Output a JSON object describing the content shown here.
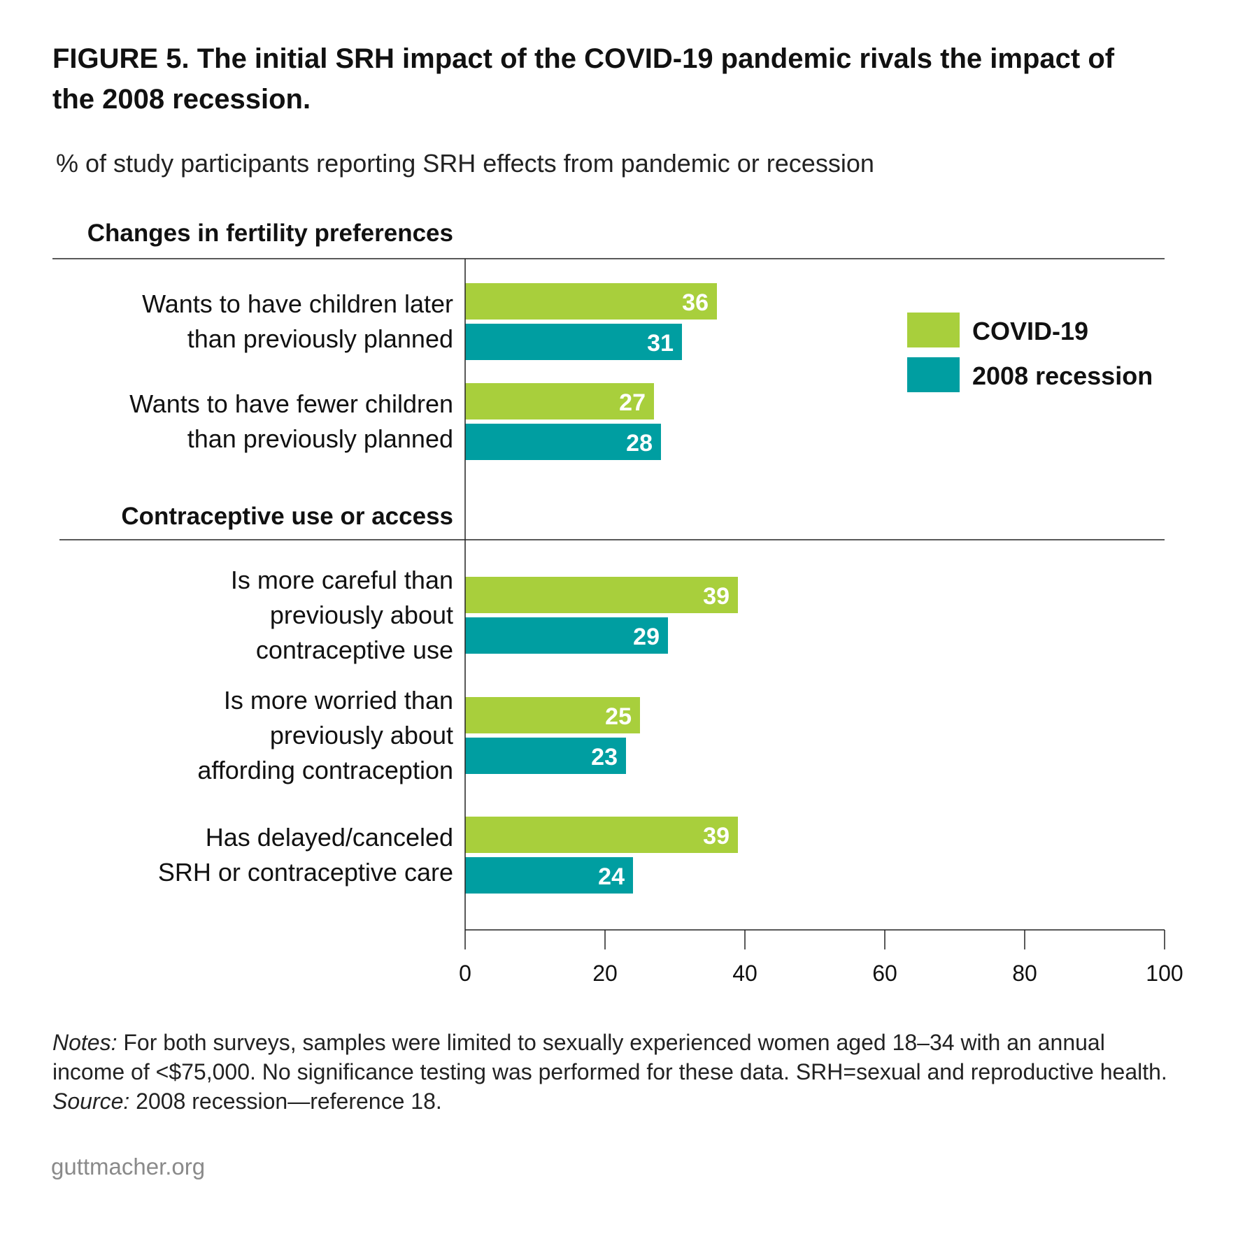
{
  "title": "FIGURE 5. The initial SRH impact of the COVID-19 pandemic rivals the impact of the 2008 recession.",
  "subtitle": "% of study participants reporting SRH effects from pandemic or recession",
  "chart_data": {
    "type": "bar",
    "orientation": "horizontal",
    "xlim": [
      0,
      100
    ],
    "x_ticks": [
      0,
      20,
      40,
      60,
      80,
      100
    ],
    "grid": false,
    "legend_placement": "top-right",
    "colors": {
      "COVID-19": "#a8cf3c",
      "2008 recession": "#009ea1"
    },
    "legend": [
      "COVID-19",
      "2008 recession"
    ],
    "groups": [
      {
        "title": "Changes in fertility preferences",
        "items": [
          {
            "label": [
              "Wants to have children later",
              "than previously planned"
            ],
            "covid": 36,
            "recession": 31
          },
          {
            "label": [
              "Wants to have fewer children",
              "than previously planned"
            ],
            "covid": 27,
            "recession": 28
          }
        ]
      },
      {
        "title": "Contraceptive use or access",
        "items": [
          {
            "label": [
              "Is more careful than",
              "previously about",
              "contraceptive use"
            ],
            "covid": 39,
            "recession": 29
          },
          {
            "label": [
              "Is more worried than",
              "previously about",
              "affording contraception"
            ],
            "covid": 25,
            "recession": 23
          },
          {
            "label": [
              "Has delayed/canceled",
              "SRH or contraceptive care"
            ],
            "covid": 39,
            "recession": 24
          }
        ]
      }
    ]
  },
  "notes": {
    "notes_label": "Notes:",
    "notes_text": " For both surveys, samples were limited to sexually experienced women aged 18–34 with an annual income of <$75,000. No significance testing was performed for these data. SRH=sexual and reproductive health. ",
    "source_label": "Source:",
    "source_text": " 2008 recession—reference 18."
  },
  "footer": "guttmacher.org"
}
